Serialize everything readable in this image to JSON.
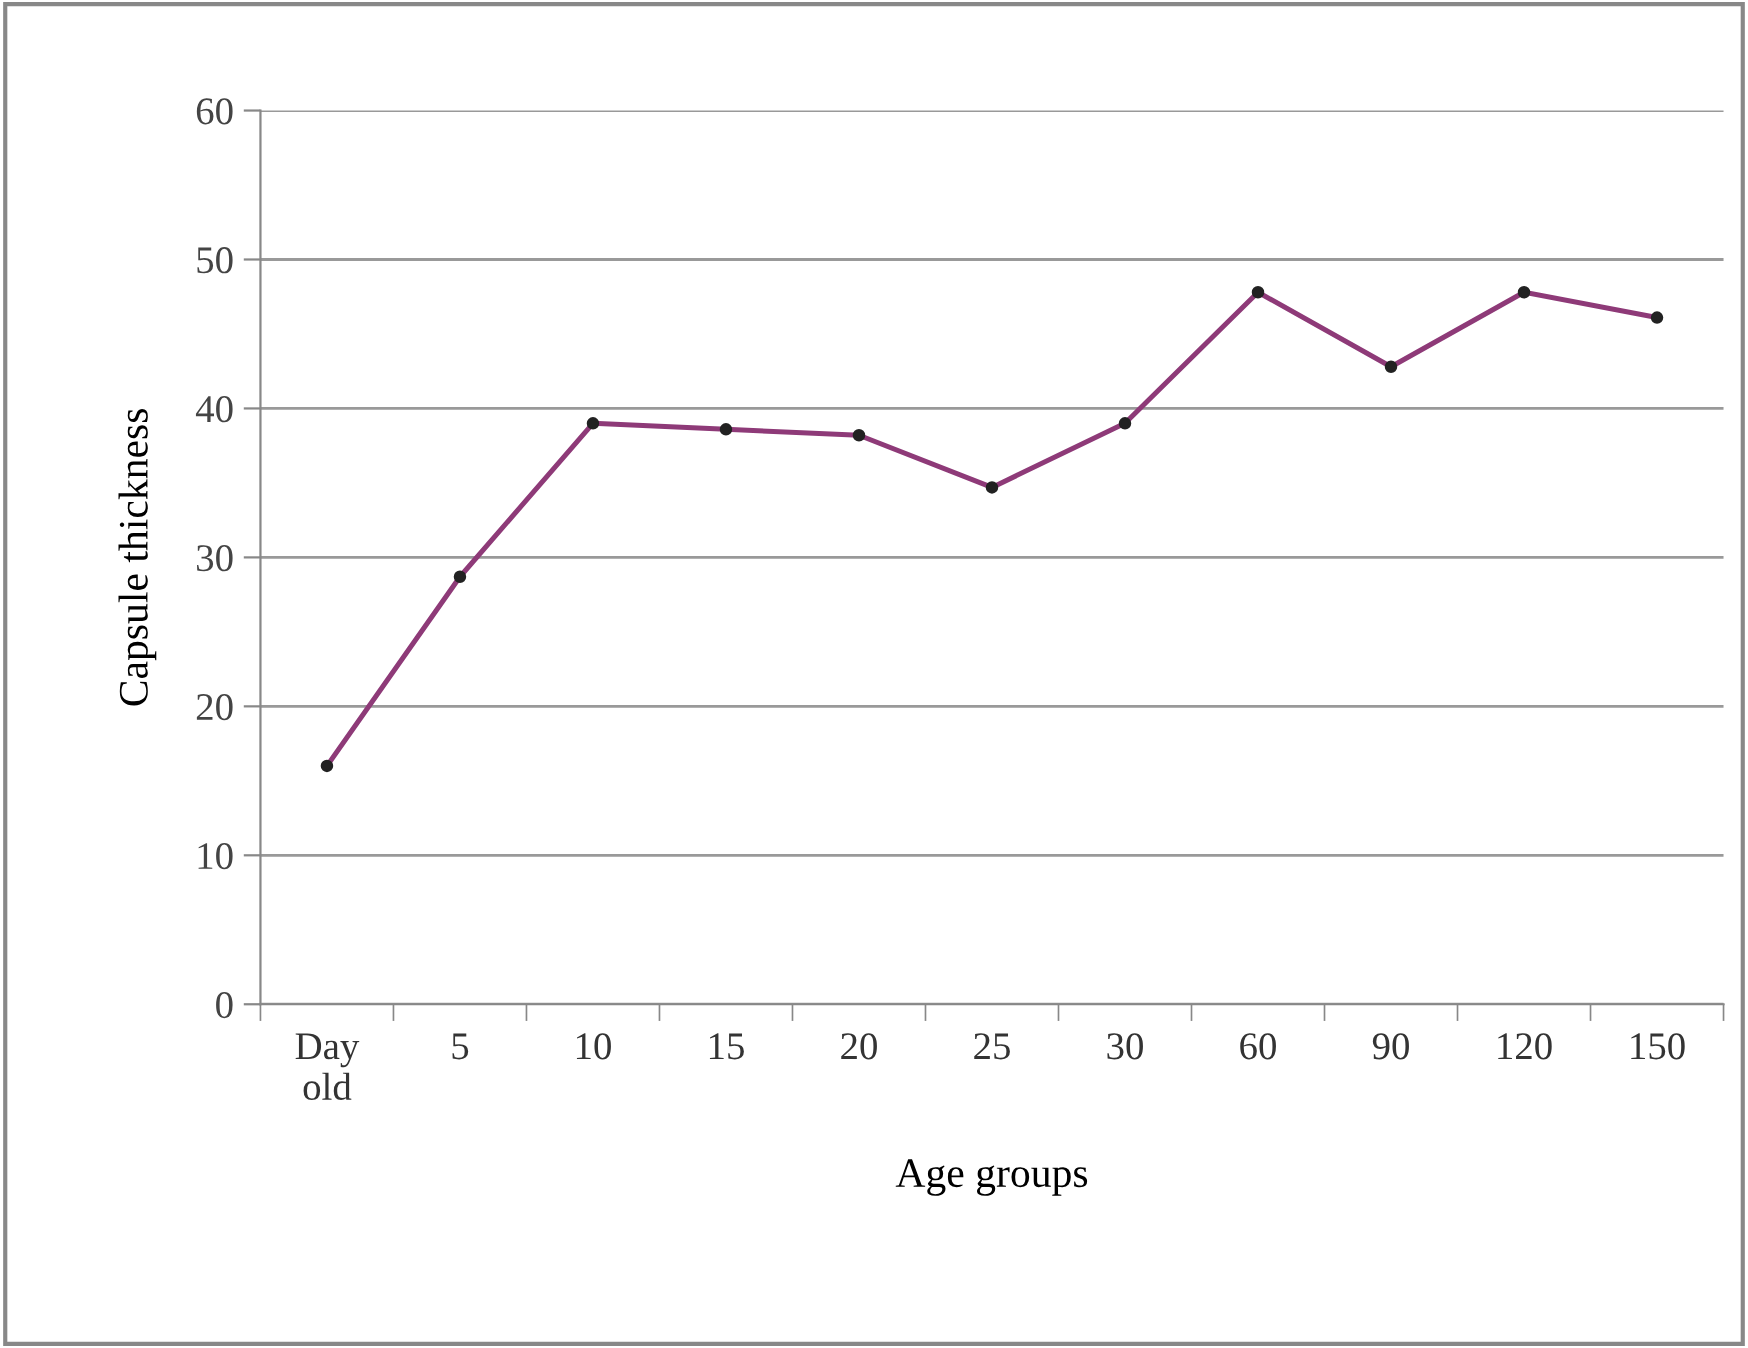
{
  "chart_data": {
    "type": "line",
    "xlabel": "Age groups",
    "ylabel": "Capsule thickness",
    "categories": [
      "Day\nold",
      "5",
      "10",
      "15",
      "20",
      "25",
      "30",
      "60",
      "90",
      "120",
      "150"
    ],
    "series": [
      {
        "color": "#8e3a78",
        "values": [
          16,
          28.7,
          39,
          38.6,
          38.2,
          34.7,
          39,
          47.8,
          42.8,
          47.8,
          46.1
        ]
      }
    ],
    "ylim": [
      0,
      60
    ],
    "yticks": [
      0,
      10,
      20,
      30,
      40,
      50,
      60
    ],
    "grid": "y",
    "marker": "circle",
    "line_style": "solid",
    "legend": false
  }
}
